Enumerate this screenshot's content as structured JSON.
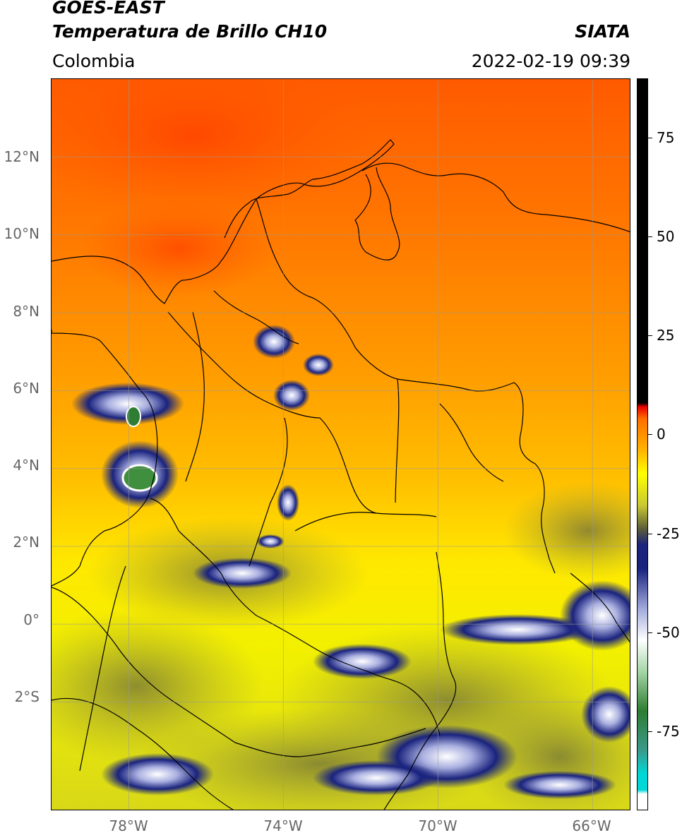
{
  "header": {
    "satellite": "GOES-EAST",
    "product": "Temperatura de Brillo CH10",
    "region": "Colombia",
    "agency": "SIATA",
    "datetime": "2022-02-19 09:39"
  },
  "map": {
    "lat_labels": [
      "12°N",
      "10°N",
      "8°N",
      "6°N",
      "4°N",
      "2°N",
      "0°",
      "2°S"
    ],
    "lat_values": [
      12,
      10,
      8,
      6,
      4,
      2,
      0,
      -2
    ],
    "lon_labels": [
      "78°W",
      "74°W",
      "70°W",
      "66°W"
    ],
    "lon_values": [
      -78,
      -74,
      -70,
      -66
    ],
    "extent": {
      "lon_min": -80,
      "lon_max": -65,
      "lat_min": -4.8,
      "lat_max": 14
    },
    "grid": true
  },
  "colorbar": {
    "ticks": [
      "75",
      "50",
      "25",
      "0",
      "-25",
      "-50",
      "-75"
    ],
    "tick_values": [
      75,
      50,
      25,
      0,
      -25,
      -50,
      -75
    ],
    "range": [
      -95,
      90
    ],
    "colors": [
      "#ffffff",
      "#00d8d8",
      "#3a9a8a",
      "#2e7d32",
      "#a5d6a7",
      "#ffffff",
      "#9fa8da",
      "#1a237e",
      "#5a5a3a",
      "#c8c832",
      "#ffff00",
      "#ffb300",
      "#ff6f00",
      "#e60000",
      "#000000"
    ],
    "units": ""
  }
}
